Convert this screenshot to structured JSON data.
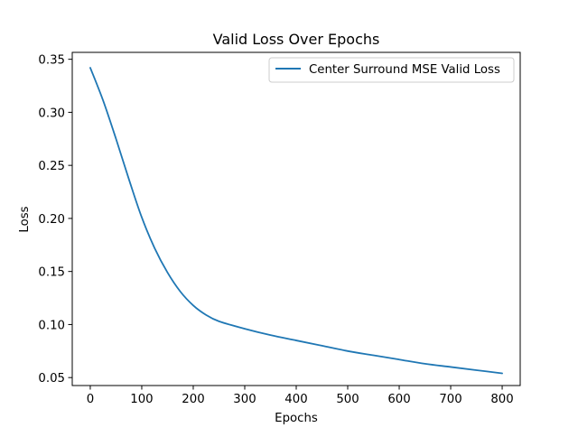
{
  "chart_data": {
    "type": "line",
    "title": "Valid Loss Over Epochs",
    "xlabel": "Epochs",
    "ylabel": "Loss",
    "xlim": [
      -35,
      835
    ],
    "ylim": [
      0.0425,
      0.3565
    ],
    "xticks": [
      0,
      100,
      200,
      300,
      400,
      500,
      600,
      700,
      800
    ],
    "xtick_labels": [
      "0",
      "100",
      "200",
      "300",
      "400",
      "500",
      "600",
      "700",
      "800"
    ],
    "yticks": [
      0.05,
      0.1,
      0.15,
      0.2,
      0.25,
      0.3,
      0.35
    ],
    "ytick_labels": [
      "0.05",
      "0.10",
      "0.15",
      "0.20",
      "0.25",
      "0.30",
      "0.35"
    ],
    "grid": false,
    "legend_placement": "upper right",
    "series": [
      {
        "name": "Center Surround MSE Valid Loss",
        "color": "#1f77b4",
        "x": [
          0,
          25,
          50,
          75,
          100,
          125,
          150,
          175,
          200,
          225,
          250,
          300,
          350,
          400,
          450,
          500,
          550,
          600,
          650,
          700,
          750,
          800
        ],
        "y": [
          0.342,
          0.311,
          0.275,
          0.237,
          0.201,
          0.172,
          0.149,
          0.131,
          0.118,
          0.109,
          0.103,
          0.096,
          0.09,
          0.085,
          0.08,
          0.075,
          0.071,
          0.067,
          0.063,
          0.06,
          0.057,
          0.054
        ]
      }
    ]
  }
}
